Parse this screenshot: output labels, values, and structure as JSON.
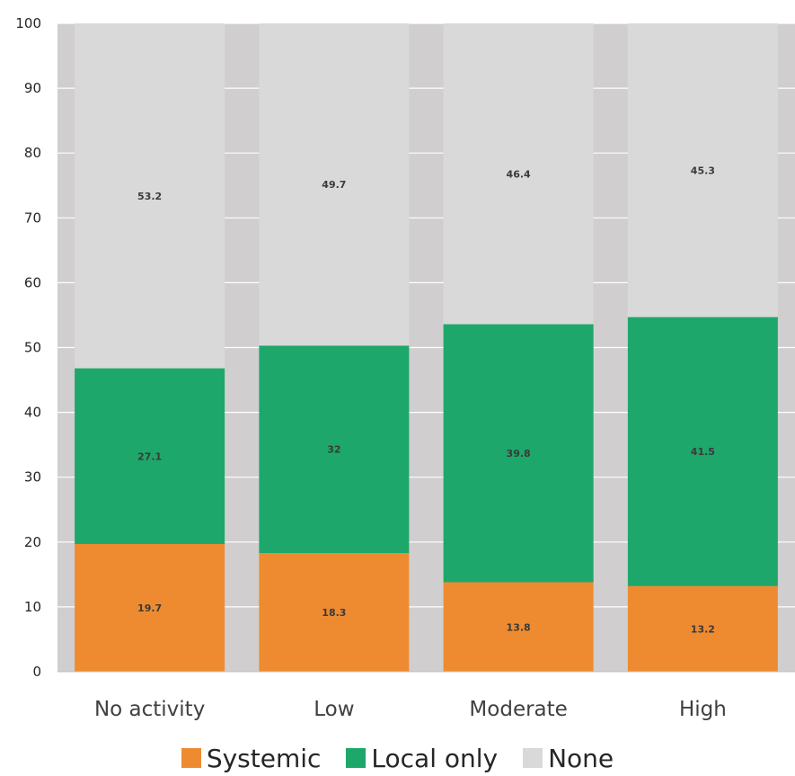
{
  "chart_data": {
    "type": "bar",
    "stacked": true,
    "categories": [
      "No activity",
      "Low",
      "Moderate",
      "High"
    ],
    "series": [
      {
        "name": "Systemic",
        "values": [
          19.7,
          18.3,
          13.8,
          13.2
        ],
        "color": "#ee8b30",
        "labels": [
          "19.7",
          "18.3",
          "13.8",
          "13.2"
        ]
      },
      {
        "name": "Local only",
        "values": [
          27.1,
          32,
          39.8,
          41.5
        ],
        "color": "#1ea76a",
        "labels": [
          "27.1",
          "32",
          "39.8",
          "41.5"
        ]
      },
      {
        "name": "None",
        "values": [
          53.2,
          49.7,
          46.4,
          45.3
        ],
        "color": "#d9d9d9",
        "labels": [
          "53.2",
          "49.7",
          "46.4",
          "45.3"
        ]
      }
    ],
    "ylim": [
      0,
      100
    ],
    "yticks": [
      "0",
      "10",
      "20",
      "30",
      "40",
      "50",
      "60",
      "70",
      "80",
      "90",
      "100"
    ],
    "plot_background": "#d0cecf",
    "grid": true,
    "legend_position": "bottom"
  }
}
